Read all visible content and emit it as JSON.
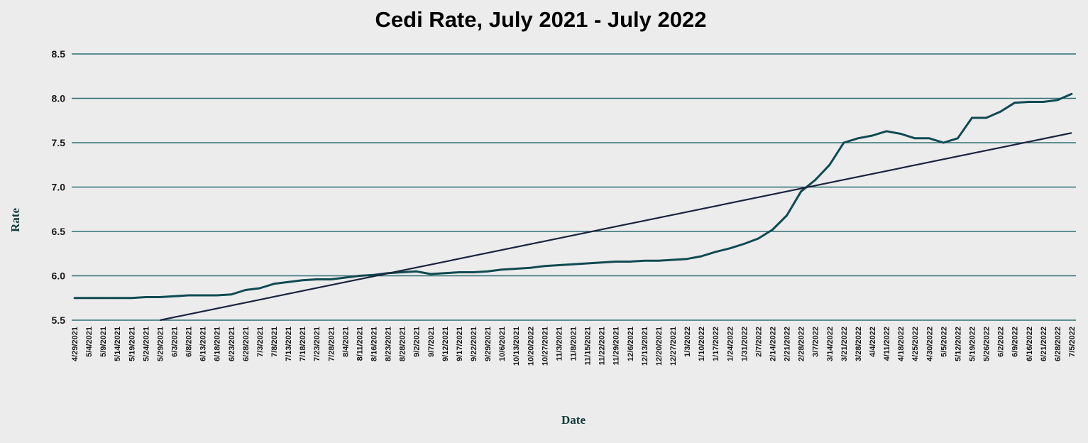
{
  "chart_data": {
    "type": "line",
    "title": "Cedi Rate, July 2021 - July 2022",
    "xlabel": "Date",
    "ylabel": "Rate",
    "ylim": [
      5.5,
      8.5
    ],
    "yticks": [
      "5.5",
      "6.0",
      "6.5",
      "7.0",
      "7.5",
      "8.0",
      "8.5"
    ],
    "grid": true,
    "colors": {
      "series": "#0f4a52",
      "trendline": "#1c2540",
      "grid": "#2f6f73",
      "background": "#ececec"
    },
    "categories": [
      "4/29/2021",
      "5/4/2021",
      "5/9/2021",
      "5/14/2021",
      "5/19/2021",
      "5/24/2021",
      "5/29/2021",
      "6/3/2021",
      "6/8/2021",
      "6/13/2021",
      "6/18/2021",
      "6/23/2021",
      "6/28/2021",
      "7/3/2021",
      "7/8/2021",
      "7/13/2021",
      "7/18/2021",
      "7/23/2021",
      "7/28/2021",
      "8/4/2021",
      "8/11/2021",
      "8/16/2021",
      "8/23/2021",
      "8/28/2021",
      "9/2/2021",
      "9/7/2021",
      "9/12/2021",
      "9/17/2021",
      "9/22/2021",
      "9/29/2021",
      "10/6/2021",
      "10/13/2021",
      "10/20/2022",
      "10/27/2021",
      "11/3/2021",
      "11/8/2021",
      "11/15/2021",
      "11/22/2021",
      "11/29/2021",
      "12/6/2021",
      "12/13/2021",
      "12/20/2021",
      "12/27/2021",
      "1/3/2022",
      "1/10/2022",
      "1/17/2022",
      "1/24/2022",
      "1/31/2022",
      "2/7/2022",
      "2/14/2022",
      "2/21/2022",
      "2/28/2022",
      "3/7/2022",
      "3/14/2022",
      "3/21/2022",
      "3/28/2022",
      "4/4/2022",
      "4/11/2022",
      "4/18/2022",
      "4/25/2022",
      "4/30/2022",
      "5/5/2022",
      "5/12/2022",
      "5/19/2022",
      "5/26/2022",
      "6/2/2022",
      "6/9/2022",
      "6/16/2022",
      "6/21/2022",
      "6/28/2022",
      "7/5/2022"
    ],
    "series": [
      {
        "type": "line",
        "values": [
          5.75,
          5.75,
          5.75,
          5.75,
          5.75,
          5.76,
          5.76,
          5.77,
          5.78,
          5.78,
          5.78,
          5.79,
          5.84,
          5.86,
          5.91,
          5.93,
          5.95,
          5.96,
          5.96,
          5.98,
          6.0,
          6.01,
          6.03,
          6.04,
          6.05,
          6.02,
          6.03,
          6.04,
          6.04,
          6.05,
          6.07,
          6.08,
          6.09,
          6.11,
          6.12,
          6.13,
          6.14,
          6.15,
          6.16,
          6.16,
          6.17,
          6.17,
          6.18,
          6.19,
          6.22,
          6.27,
          6.31,
          6.36,
          6.42,
          6.52,
          6.68,
          6.95,
          7.08,
          7.25,
          7.5,
          7.55,
          7.58,
          7.63,
          7.6,
          7.55,
          7.55,
          7.5,
          7.55,
          7.78,
          7.78,
          7.85,
          7.95,
          7.96,
          7.96,
          7.98,
          8.05
        ]
      },
      {
        "type": "trendline",
        "x": [
          "5/29/2021",
          "7/5/2022"
        ],
        "values": [
          5.5,
          7.61
        ]
      }
    ]
  }
}
